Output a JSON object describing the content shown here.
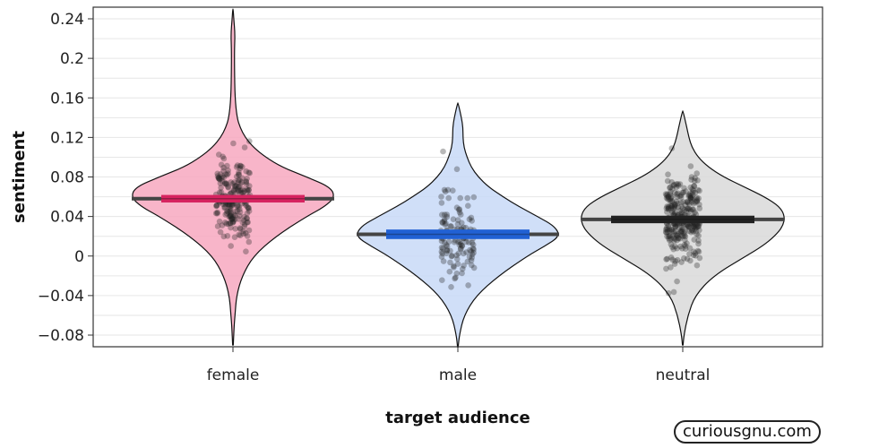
{
  "chart_data": {
    "type": "violin",
    "xlabel": "target audience",
    "ylabel": "sentiment",
    "ylim": [
      -0.092,
      0.25
    ],
    "grid": true,
    "y_ticks": [
      {
        "value": 0.24,
        "label": "0.24"
      },
      {
        "value": 0.2,
        "label": "0.2"
      },
      {
        "value": 0.16,
        "label": "0.16"
      },
      {
        "value": 0.12,
        "label": "0.12"
      },
      {
        "value": 0.08,
        "label": "0.08"
      },
      {
        "value": 0.04,
        "label": "0.04"
      },
      {
        "value": 0,
        "label": "0"
      },
      {
        "value": -0.04,
        "label": "−0.04"
      },
      {
        "value": -0.08,
        "label": "−0.08"
      }
    ],
    "categories": [
      "female",
      "male",
      "neutral"
    ],
    "groups": [
      {
        "category": "female",
        "color": "#f7a8c0",
        "line_color": "#d6235f",
        "mean": 0.058,
        "ci": [
          0.056,
          0.06
        ],
        "y_min": -0.09,
        "y_max": 0.25,
        "point_count": 220,
        "density": [
          [
            -0.09,
            0.003
          ],
          [
            -0.07,
            0.012
          ],
          [
            -0.06,
            0.02
          ],
          [
            -0.04,
            0.035
          ],
          [
            -0.02,
            0.09
          ],
          [
            0.0,
            0.2
          ],
          [
            0.02,
            0.42
          ],
          [
            0.04,
            0.72
          ],
          [
            0.05,
            0.9
          ],
          [
            0.06,
            1.0
          ],
          [
            0.07,
            0.95
          ],
          [
            0.08,
            0.72
          ],
          [
            0.09,
            0.48
          ],
          [
            0.1,
            0.32
          ],
          [
            0.11,
            0.2
          ],
          [
            0.12,
            0.12
          ],
          [
            0.13,
            0.07
          ],
          [
            0.14,
            0.04
          ],
          [
            0.16,
            0.02
          ],
          [
            0.19,
            0.015
          ],
          [
            0.21,
            0.015
          ],
          [
            0.225,
            0.02
          ],
          [
            0.24,
            0.008
          ],
          [
            0.25,
            0.002
          ]
        ]
      },
      {
        "category": "male",
        "color": "#c8d9f7",
        "line_color": "#2161d4",
        "mean": 0.022,
        "ci": [
          0.019,
          0.025
        ],
        "y_min": -0.092,
        "y_max": 0.155,
        "point_count": 130,
        "density": [
          [
            -0.092,
            0.003
          ],
          [
            -0.08,
            0.015
          ],
          [
            -0.06,
            0.06
          ],
          [
            -0.04,
            0.18
          ],
          [
            -0.02,
            0.4
          ],
          [
            0.0,
            0.68
          ],
          [
            0.01,
            0.85
          ],
          [
            0.02,
            1.0
          ],
          [
            0.03,
            0.95
          ],
          [
            0.04,
            0.78
          ],
          [
            0.05,
            0.6
          ],
          [
            0.06,
            0.44
          ],
          [
            0.07,
            0.3
          ],
          [
            0.08,
            0.2
          ],
          [
            0.09,
            0.13
          ],
          [
            0.1,
            0.09
          ],
          [
            0.11,
            0.06
          ],
          [
            0.12,
            0.05
          ],
          [
            0.13,
            0.05
          ],
          [
            0.14,
            0.035
          ],
          [
            0.155,
            0.002
          ]
        ]
      },
      {
        "category": "neutral",
        "color": "#d9d9d9",
        "line_color": "#222222",
        "mean": 0.037,
        "ci": [
          0.035,
          0.039
        ],
        "y_min": -0.09,
        "y_max": 0.147,
        "point_count": 300,
        "density": [
          [
            -0.09,
            0.003
          ],
          [
            -0.08,
            0.012
          ],
          [
            -0.06,
            0.05
          ],
          [
            -0.04,
            0.12
          ],
          [
            -0.02,
            0.3
          ],
          [
            0.0,
            0.62
          ],
          [
            0.01,
            0.78
          ],
          [
            0.02,
            0.9
          ],
          [
            0.03,
            0.98
          ],
          [
            0.04,
            1.0
          ],
          [
            0.05,
            0.95
          ],
          [
            0.06,
            0.8
          ],
          [
            0.07,
            0.6
          ],
          [
            0.08,
            0.4
          ],
          [
            0.09,
            0.25
          ],
          [
            0.1,
            0.15
          ],
          [
            0.11,
            0.09
          ],
          [
            0.12,
            0.06
          ],
          [
            0.13,
            0.04
          ],
          [
            0.147,
            0.002
          ]
        ]
      }
    ]
  },
  "watermark": "curiousgnu.com"
}
